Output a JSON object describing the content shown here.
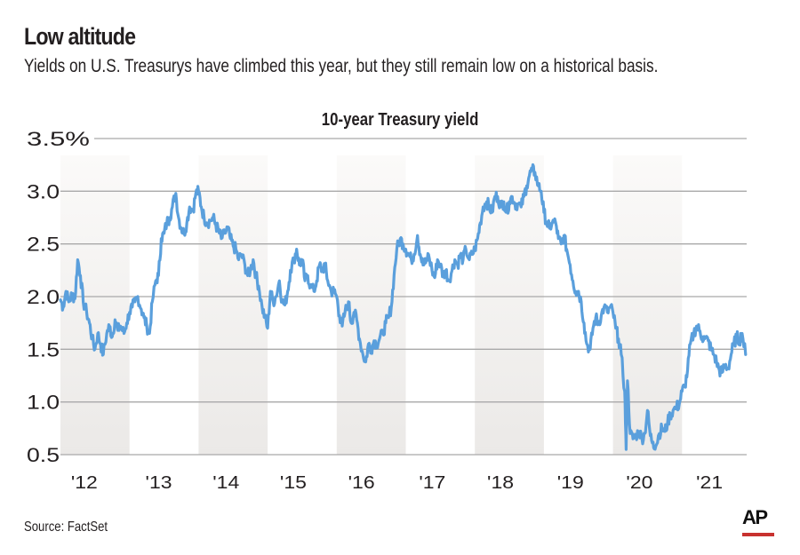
{
  "header": {
    "title": "Low altitude",
    "subtitle": "Yields on U.S. Treasurys have climbed this year, but they still remain low on a historical basis."
  },
  "footer": {
    "source": "Source: FactSet",
    "logo_text": "AP",
    "logo_accent_color": "#c8312f"
  },
  "colors": {
    "line": "#5a9fdc",
    "grid": "#a9a9a9",
    "band_top": "#fbfaf9",
    "band_bottom": "#ebe9e7"
  },
  "chart_data": {
    "type": "line",
    "title": "10-year Treasury yield",
    "xlabel": "",
    "ylabel": "",
    "ylim": [
      0.5,
      3.5
    ],
    "xlim": [
      2012.0,
      2021.95
    ],
    "y_ticks": [
      3.5,
      3.0,
      2.5,
      2.0,
      1.5,
      1.0,
      0.5
    ],
    "y_tick_labels": [
      "3.5%",
      "3.0",
      "2.5",
      "2.0",
      "1.5",
      "1.0",
      "0.5"
    ],
    "x_ticks": [
      2012,
      2013,
      2014,
      2015,
      2016,
      2017,
      2018,
      2019,
      2020,
      2021
    ],
    "x_tick_labels": [
      "'12",
      "'13",
      "'14",
      "'15",
      "'16",
      "'17",
      "'18",
      "'19",
      "'20",
      "'21"
    ],
    "shaded_years": [
      2012,
      2014,
      2016,
      2018,
      2020
    ],
    "grid": true,
    "legend": "none",
    "series": [
      {
        "name": "10-year Treasury yield",
        "x": [
          2012.0,
          2012.04,
          2012.08,
          2012.12,
          2012.17,
          2012.21,
          2012.25,
          2012.29,
          2012.33,
          2012.38,
          2012.42,
          2012.46,
          2012.5,
          2012.54,
          2012.58,
          2012.62,
          2012.67,
          2012.71,
          2012.75,
          2012.79,
          2012.83,
          2012.87,
          2012.92,
          2012.96,
          2013.0,
          2013.04,
          2013.08,
          2013.12,
          2013.17,
          2013.21,
          2013.25,
          2013.29,
          2013.33,
          2013.38,
          2013.42,
          2013.46,
          2013.5,
          2013.54,
          2013.58,
          2013.62,
          2013.67,
          2013.71,
          2013.75,
          2013.79,
          2013.83,
          2013.87,
          2013.92,
          2013.96,
          2014.0,
          2014.04,
          2014.08,
          2014.12,
          2014.17,
          2014.21,
          2014.25,
          2014.29,
          2014.33,
          2014.38,
          2014.42,
          2014.46,
          2014.5,
          2014.54,
          2014.58,
          2014.62,
          2014.67,
          2014.71,
          2014.75,
          2014.79,
          2014.83,
          2014.87,
          2014.92,
          2014.96,
          2015.0,
          2015.04,
          2015.08,
          2015.12,
          2015.17,
          2015.21,
          2015.25,
          2015.29,
          2015.33,
          2015.38,
          2015.42,
          2015.46,
          2015.5,
          2015.54,
          2015.58,
          2015.62,
          2015.67,
          2015.71,
          2015.75,
          2015.79,
          2015.83,
          2015.87,
          2015.92,
          2015.96,
          2016.0,
          2016.04,
          2016.08,
          2016.12,
          2016.17,
          2016.21,
          2016.25,
          2016.29,
          2016.33,
          2016.38,
          2016.42,
          2016.46,
          2016.5,
          2016.54,
          2016.58,
          2016.62,
          2016.67,
          2016.71,
          2016.75,
          2016.79,
          2016.83,
          2016.87,
          2016.92,
          2016.96,
          2017.0,
          2017.04,
          2017.08,
          2017.12,
          2017.17,
          2017.21,
          2017.25,
          2017.29,
          2017.33,
          2017.38,
          2017.42,
          2017.46,
          2017.5,
          2017.54,
          2017.58,
          2017.62,
          2017.67,
          2017.71,
          2017.75,
          2017.79,
          2017.83,
          2017.87,
          2017.92,
          2017.96,
          2018.0,
          2018.04,
          2018.08,
          2018.12,
          2018.17,
          2018.21,
          2018.25,
          2018.29,
          2018.33,
          2018.38,
          2018.42,
          2018.46,
          2018.5,
          2018.54,
          2018.58,
          2018.62,
          2018.67,
          2018.71,
          2018.75,
          2018.79,
          2018.83,
          2018.87,
          2018.92,
          2018.96,
          2019.0,
          2019.04,
          2019.08,
          2019.12,
          2019.17,
          2019.21,
          2019.25,
          2019.29,
          2019.33,
          2019.38,
          2019.42,
          2019.46,
          2019.5,
          2019.54,
          2019.58,
          2019.62,
          2019.67,
          2019.71,
          2019.75,
          2019.79,
          2019.83,
          2019.87,
          2019.92,
          2019.96,
          2020.0,
          2020.04,
          2020.08,
          2020.12,
          2020.17,
          2020.19,
          2020.21,
          2020.25,
          2020.29,
          2020.33,
          2020.38,
          2020.42,
          2020.46,
          2020.5,
          2020.54,
          2020.58,
          2020.62,
          2020.67,
          2020.71,
          2020.75,
          2020.79,
          2020.83,
          2020.87,
          2020.92,
          2020.96,
          2021.0,
          2021.04,
          2021.08,
          2021.12,
          2021.17,
          2021.21,
          2021.25,
          2021.29,
          2021.33,
          2021.38,
          2021.42,
          2021.46,
          2021.5,
          2021.54,
          2021.58,
          2021.62,
          2021.67,
          2021.71,
          2021.75,
          2021.79,
          2021.83,
          2021.87,
          2021.92
        ],
        "y": [
          1.97,
          1.9,
          2.05,
          1.95,
          2.02,
          1.98,
          2.35,
          2.2,
          1.95,
          1.85,
          1.75,
          1.6,
          1.5,
          1.65,
          1.55,
          1.45,
          1.65,
          1.72,
          1.62,
          1.78,
          1.68,
          1.72,
          1.65,
          1.75,
          1.85,
          1.9,
          1.95,
          2.0,
          1.88,
          1.8,
          1.72,
          1.65,
          1.95,
          2.15,
          2.2,
          2.55,
          2.6,
          2.7,
          2.75,
          2.85,
          2.98,
          2.75,
          2.65,
          2.6,
          2.7,
          2.85,
          2.82,
          2.98,
          3.0,
          2.85,
          2.75,
          2.7,
          2.72,
          2.75,
          2.68,
          2.62,
          2.55,
          2.6,
          2.65,
          2.55,
          2.48,
          2.45,
          2.35,
          2.4,
          2.3,
          2.2,
          2.25,
          2.35,
          2.2,
          2.1,
          1.9,
          1.8,
          1.7,
          2.05,
          1.95,
          2.0,
          2.15,
          1.95,
          1.92,
          2.05,
          2.25,
          2.35,
          2.45,
          2.3,
          2.35,
          2.15,
          2.2,
          2.1,
          2.05,
          2.15,
          2.3,
          2.25,
          2.3,
          2.15,
          2.05,
          2.05,
          2.0,
          1.82,
          1.72,
          1.85,
          1.95,
          1.75,
          1.85,
          1.78,
          1.6,
          1.45,
          1.38,
          1.55,
          1.5,
          1.58,
          1.55,
          1.6,
          1.65,
          1.75,
          1.8,
          1.9,
          2.2,
          2.45,
          2.55,
          2.5,
          2.45,
          2.4,
          2.35,
          2.4,
          2.58,
          2.4,
          2.3,
          2.32,
          2.4,
          2.25,
          2.18,
          2.35,
          2.3,
          2.2,
          2.25,
          2.15,
          2.25,
          2.35,
          2.3,
          2.4,
          2.35,
          2.45,
          2.35,
          2.4,
          2.45,
          2.55,
          2.7,
          2.85,
          2.9,
          2.85,
          2.8,
          2.95,
          2.95,
          2.85,
          2.9,
          2.8,
          2.9,
          2.95,
          2.88,
          2.88,
          2.85,
          2.95,
          3.05,
          3.15,
          3.2,
          3.18,
          3.05,
          3.0,
          2.8,
          2.7,
          2.65,
          2.7,
          2.7,
          2.55,
          2.5,
          2.58,
          2.45,
          2.3,
          2.15,
          2.05,
          2.05,
          1.95,
          1.75,
          1.55,
          1.5,
          1.7,
          1.8,
          1.75,
          1.82,
          1.9,
          1.85,
          1.9,
          1.85,
          1.7,
          1.6,
          1.45,
          1.1,
          0.55,
          1.2,
          0.7,
          0.65,
          0.68,
          0.72,
          0.65,
          0.7,
          0.92,
          0.68,
          0.62,
          0.58,
          0.7,
          0.75,
          0.72,
          0.8,
          0.88,
          0.92,
          0.95,
          0.98,
          1.1,
          1.15,
          1.3,
          1.55,
          1.65,
          1.72,
          1.68,
          1.62,
          1.6,
          1.58,
          1.5,
          1.45,
          1.38,
          1.3,
          1.28,
          1.35,
          1.32,
          1.45,
          1.55,
          1.62,
          1.58,
          1.65,
          1.45
        ]
      }
    ]
  }
}
